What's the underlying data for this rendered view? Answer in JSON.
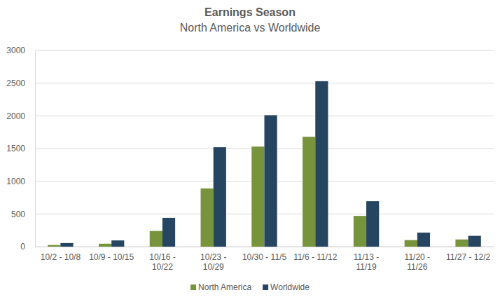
{
  "chart_data": {
    "type": "bar",
    "title": "Earnings Season",
    "subtitle": "North America vs Worldwide",
    "categories": [
      "10/2 - 10/8",
      "10/9 - 10/15",
      "10/16 - 10/22",
      "10/23 - 10/29",
      "10/30 - 11/5",
      "11/6 - 11/12",
      "11/13 - 11/19",
      "11/20 - 11/26",
      "11/27 - 12/2"
    ],
    "series": [
      {
        "name": "North America",
        "color": "#77933c",
        "values": [
          25,
          45,
          240,
          890,
          1530,
          1680,
          470,
          100,
          110
        ]
      },
      {
        "name": "Worldwide",
        "color": "#254561",
        "values": [
          55,
          95,
          440,
          1520,
          2010,
          2530,
          695,
          215,
          165
        ]
      }
    ],
    "ylim": [
      0,
      3000
    ],
    "yticks": [
      0,
      500,
      1000,
      1500,
      2000,
      2500,
      3000
    ],
    "grid": true,
    "legend": "bottom"
  }
}
